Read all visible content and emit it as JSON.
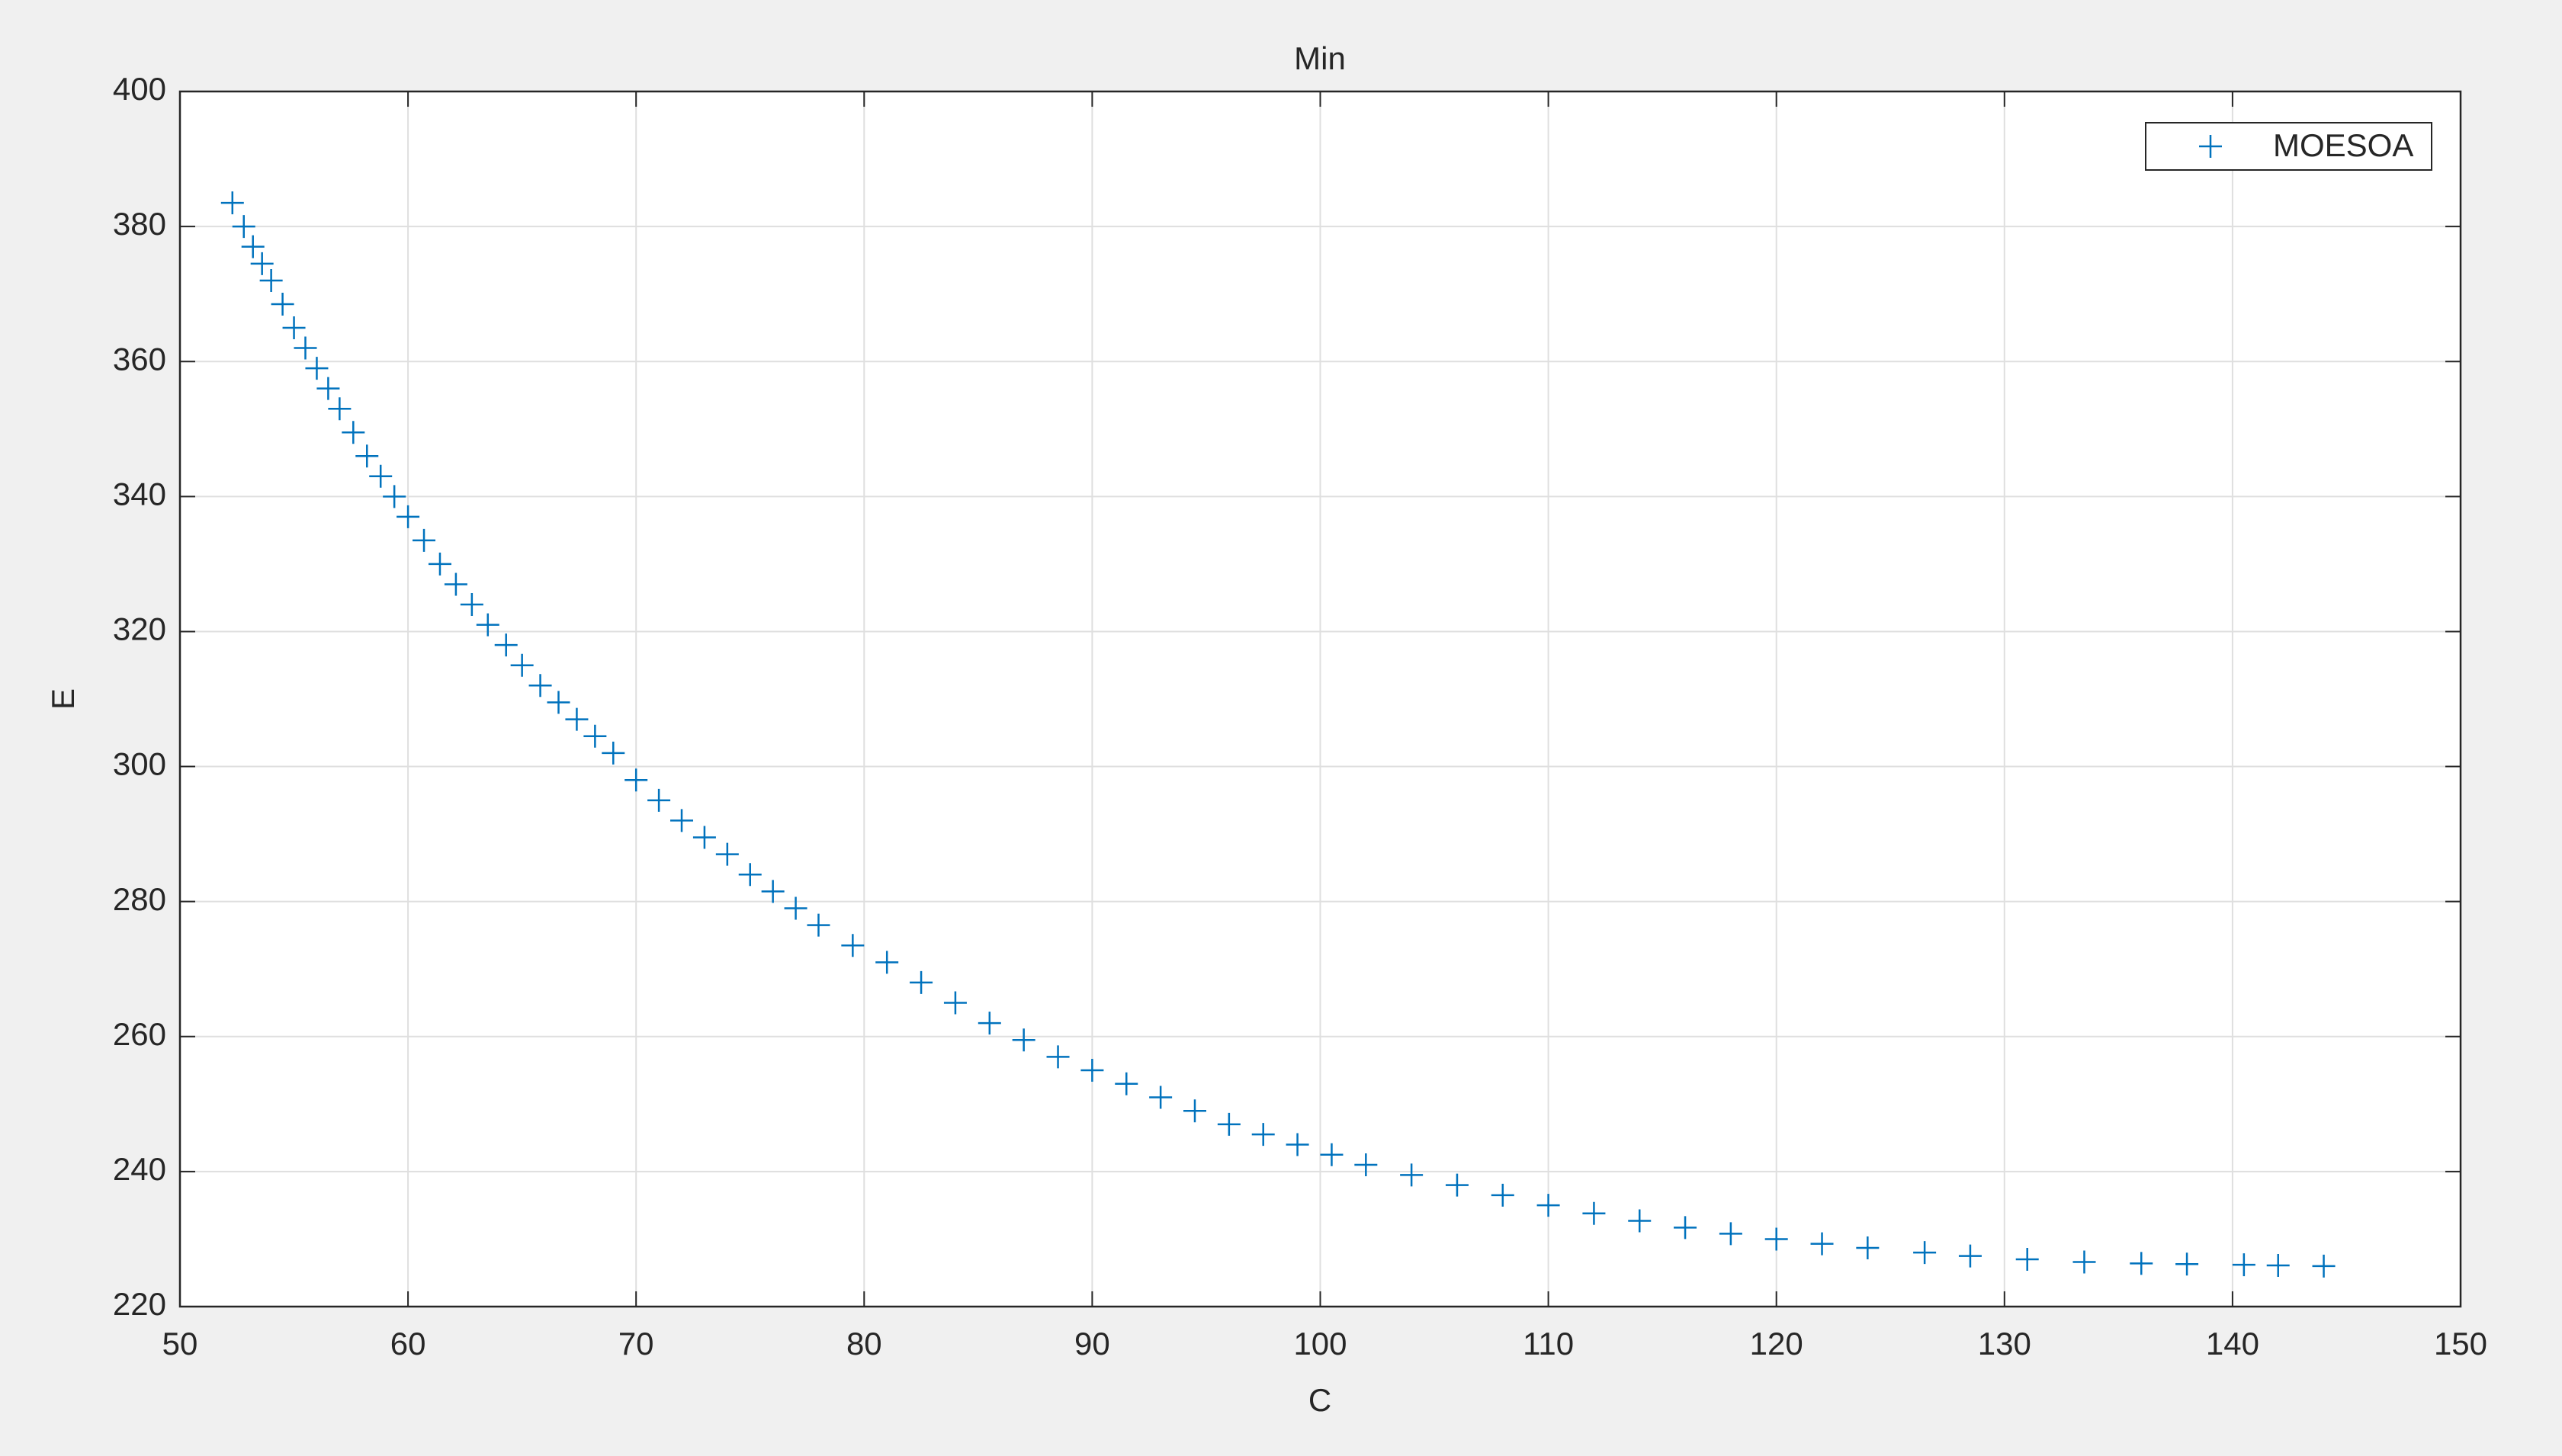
{
  "chart_data": {
    "type": "scatter",
    "title": "Min",
    "xlabel": "C",
    "ylabel": "E",
    "xlim": [
      50,
      150
    ],
    "xticks": [
      50,
      60,
      70,
      80,
      90,
      100,
      110,
      120,
      130,
      140,
      150
    ],
    "ylim": [
      220,
      400
    ],
    "yticks": [
      220,
      240,
      260,
      280,
      300,
      320,
      340,
      360,
      380,
      400
    ],
    "grid": true,
    "legend": "upper right",
    "series": [
      {
        "name": "MOESOA",
        "color": "#0072bd",
        "marker": "+",
        "x": [
          52.3,
          52.8,
          53.2,
          53.6,
          54.0,
          54.5,
          55.0,
          55.5,
          56.0,
          56.5,
          57.0,
          57.6,
          58.2,
          58.8,
          59.4,
          60.0,
          60.7,
          61.4,
          62.1,
          62.8,
          63.5,
          64.3,
          65.0,
          65.8,
          66.6,
          67.4,
          68.2,
          69.0,
          70.0,
          71.0,
          72.0,
          73.0,
          74.0,
          75.0,
          76.0,
          77.0,
          78.0,
          79.5,
          81.0,
          82.5,
          84.0,
          85.5,
          87.0,
          88.5,
          90.0,
          91.5,
          93.0,
          94.5,
          96.0,
          97.5,
          99.0,
          100.5,
          102.0,
          104.0,
          106.0,
          108.0,
          110.0,
          112.0,
          114.0,
          116.0,
          118.0,
          120.0,
          122.0,
          124.0,
          126.5,
          128.5,
          131.0,
          133.5,
          136.0,
          138.0,
          140.5,
          142.0,
          144.0
        ],
        "values": [
          383.5,
          380,
          377,
          374.5,
          372,
          368.5,
          365,
          362,
          359,
          356,
          353,
          349.5,
          346,
          343,
          340,
          337,
          333.5,
          330,
          327,
          324,
          321,
          318,
          315,
          312,
          309.5,
          307,
          304.5,
          302,
          298,
          295,
          292,
          289.5,
          287,
          284,
          281.5,
          279,
          276.5,
          273.5,
          271,
          268,
          265,
          262,
          259.5,
          257,
          255,
          253,
          251,
          249,
          247,
          245.5,
          244,
          242.5,
          241,
          239.5,
          238,
          236.5,
          235,
          233.8,
          232.7,
          231.7,
          230.8,
          230,
          229.3,
          228.7,
          228,
          227.5,
          227,
          226.6,
          226.4,
          226.3,
          226.2,
          226.1,
          226
        ]
      }
    ]
  }
}
